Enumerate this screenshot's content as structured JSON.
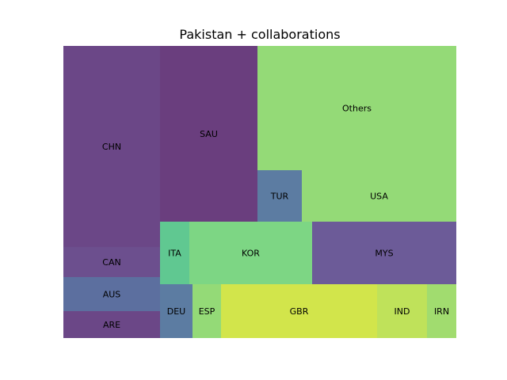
{
  "chart_data": {
    "type": "treemap",
    "title": "Pakistan + collaborations",
    "grid": false,
    "legend": "none",
    "tiles": [
      {
        "label": "CHN",
        "value": 9.36,
        "color": "#6b4787"
      },
      {
        "label": "CAN",
        "value": 1.41,
        "color": "#6c4f8e"
      },
      {
        "label": "AUS",
        "value": 1.58,
        "color": "#5c6f9f"
      },
      {
        "label": "ARE",
        "value": 1.24,
        "color": "#6b4787"
      },
      {
        "label": "SAU",
        "value": 8.2,
        "color": "#6a3e7e"
      },
      {
        "label": "Others",
        "value": 14.14,
        "color": "#94da77"
      },
      {
        "label": "TUR",
        "value": 2.14,
        "color": "#5c7ca2"
      },
      {
        "label": "USA",
        "value": 7.33,
        "color": "#94da77"
      },
      {
        "label": "ITA",
        "value": 1.72,
        "color": "#60c891"
      },
      {
        "label": "KOR",
        "value": 4.5,
        "color": "#7dd684"
      },
      {
        "label": "MYS",
        "value": 6.53,
        "color": "#6c5b98"
      },
      {
        "label": "DEU",
        "value": 1.6,
        "color": "#5c7ca2"
      },
      {
        "label": "ESP",
        "value": 1.41,
        "color": "#94da77"
      },
      {
        "label": "GBR",
        "value": 7.69,
        "color": "#d2e54b"
      },
      {
        "label": "IND",
        "value": 2.47,
        "color": "#bfe25a"
      },
      {
        "label": "IRN",
        "value": 1.41,
        "color": "#a1dc6f"
      }
    ]
  }
}
